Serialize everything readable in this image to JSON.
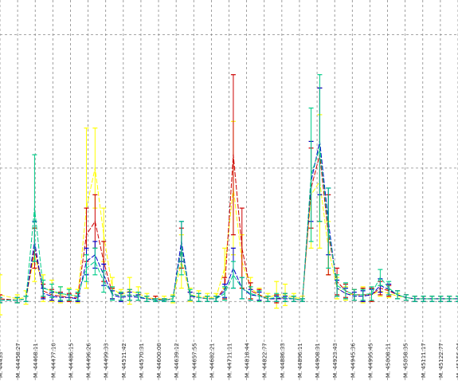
{
  "chart_data": {
    "type": "line",
    "title": "",
    "xlabel": "",
    "ylabel": "",
    "grid": true,
    "legend": "none",
    "categories": [
      "M. 44433",
      "M. 44458.27",
      "M. 44468.11",
      "M. 44477.10",
      "M. 44486.15",
      "M. 44496.26",
      "M. 44499.33",
      "M. 44511.42",
      "M. 44570.31",
      "M. 44600.00",
      "M. 44639.12",
      "M. 44657.55",
      "M. 44682.21",
      "M. 44711.11",
      "M. 44818.44",
      "M. 44822.77",
      "M. 44886.33",
      "M. 44896.11",
      "M. 44908.31",
      "M. 44923.43",
      "M. 44945.36",
      "M. 44995.45",
      "M. 45008.11",
      "M. 45058.35",
      "M. 45111.17",
      "M. 45122.77",
      "M. 45156.04"
    ],
    "x": [
      0,
      1,
      1.5,
      2,
      2.5,
      3,
      3.5,
      4,
      4.5,
      5,
      5.5,
      6,
      6.5,
      7,
      7.5,
      8,
      8.5,
      9,
      9.5,
      10,
      10.5,
      11,
      11.5,
      12,
      12.5,
      13,
      13.5,
      14,
      14.5,
      15,
      15.5,
      16,
      16.5,
      17,
      17.5,
      18,
      18.5,
      19,
      19.5,
      20,
      20.5,
      21,
      21.5,
      22,
      22.5,
      23,
      23.5,
      24,
      24.5,
      25,
      25.5,
      26,
      26.5
    ],
    "ylim": [
      -0.1,
      2.2
    ],
    "series": [
      {
        "color": "#ffff00",
        "values": [
          0.05,
          0.02,
          0.03,
          0.35,
          0.1,
          0.08,
          0.05,
          0.05,
          0.04,
          0.7,
          1.0,
          0.5,
          0.1,
          0.05,
          0.08,
          0.06,
          0.03,
          0.02,
          0.02,
          0.02,
          0.3,
          0.05,
          0.04,
          0.03,
          0.03,
          0.25,
          0.85,
          0.3,
          0.1,
          0.05,
          0.03,
          0.05,
          0.05,
          0.03,
          0.02,
          0.8,
          0.9,
          0.4,
          0.1,
          0.06,
          0.05,
          0.05,
          0.05,
          0.08,
          0.06,
          0.04,
          0.03,
          0.02,
          0.02,
          0.02,
          0.02,
          0.02,
          0.02
        ],
        "errors": [
          0.15,
          0.03,
          0.05,
          0.2,
          0.1,
          0.08,
          0.06,
          0.05,
          0.05,
          0.6,
          0.3,
          0.2,
          0.08,
          0.04,
          0.1,
          0.05,
          0.03,
          0.02,
          0.02,
          0.03,
          0.2,
          0.05,
          0.04,
          0.03,
          0.03,
          0.15,
          0.5,
          0.2,
          0.08,
          0.05,
          0.03,
          0.1,
          0.08,
          0.03,
          0.02,
          0.4,
          0.5,
          0.2,
          0.08,
          0.05,
          0.04,
          0.06,
          0.05,
          0.04,
          0.03,
          0.02,
          0.02,
          0.02,
          0.02,
          0.02,
          0.02,
          0.02,
          0.02
        ]
      },
      {
        "color": "#cc0000",
        "values": [
          0.02,
          0.01,
          0.02,
          0.4,
          0.08,
          0.05,
          0.04,
          0.03,
          0.03,
          0.5,
          0.6,
          0.3,
          0.06,
          0.04,
          0.05,
          0.04,
          0.02,
          0.02,
          0.01,
          0.02,
          0.4,
          0.04,
          0.03,
          0.02,
          0.02,
          0.1,
          1.1,
          0.4,
          0.08,
          0.05,
          0.02,
          0.02,
          0.03,
          0.02,
          0.01,
          0.85,
          1.1,
          0.5,
          0.15,
          0.08,
          0.05,
          0.05,
          0.05,
          0.1,
          0.08,
          0.05,
          0.03,
          0.02,
          0.02,
          0.02,
          0.02,
          0.02,
          0.02
        ],
        "errors": [
          0.03,
          0.02,
          0.02,
          0.15,
          0.05,
          0.04,
          0.03,
          0.03,
          0.03,
          0.2,
          0.2,
          0.15,
          0.04,
          0.03,
          0.04,
          0.03,
          0.02,
          0.02,
          0.01,
          0.02,
          0.15,
          0.03,
          0.03,
          0.02,
          0.02,
          0.08,
          0.6,
          0.3,
          0.06,
          0.04,
          0.02,
          0.03,
          0.03,
          0.02,
          0.01,
          0.3,
          0.5,
          0.3,
          0.1,
          0.05,
          0.04,
          0.05,
          0.05,
          0.05,
          0.04,
          0.03,
          0.02,
          0.02,
          0.02,
          0.02,
          0.02,
          0.02,
          0.02
        ]
      },
      {
        "color": "#0000cc",
        "values": [
          0.01,
          0.01,
          0.02,
          0.45,
          0.06,
          0.04,
          0.03,
          0.03,
          0.02,
          0.3,
          0.35,
          0.2,
          0.05,
          0.03,
          0.04,
          0.03,
          0.02,
          0.01,
          0.01,
          0.02,
          0.45,
          0.04,
          0.03,
          0.02,
          0.02,
          0.08,
          0.25,
          0.1,
          0.05,
          0.04,
          0.02,
          0.02,
          0.02,
          0.02,
          0.01,
          0.9,
          1.2,
          0.6,
          0.1,
          0.06,
          0.04,
          0.04,
          0.05,
          0.12,
          0.09,
          0.05,
          0.03,
          0.02,
          0.02,
          0.02,
          0.02,
          0.02,
          0.02
        ],
        "errors": [
          0.02,
          0.02,
          0.02,
          0.15,
          0.04,
          0.03,
          0.03,
          0.02,
          0.02,
          0.1,
          0.1,
          0.08,
          0.03,
          0.03,
          0.03,
          0.02,
          0.02,
          0.01,
          0.01,
          0.02,
          0.15,
          0.03,
          0.03,
          0.02,
          0.02,
          0.05,
          0.15,
          0.08,
          0.04,
          0.03,
          0.02,
          0.02,
          0.02,
          0.02,
          0.01,
          0.3,
          0.4,
          0.25,
          0.06,
          0.04,
          0.03,
          0.04,
          0.04,
          0.05,
          0.04,
          0.03,
          0.02,
          0.02,
          0.02,
          0.02,
          0.02,
          0.02,
          0.02
        ]
      },
      {
        "color": "#00cc88",
        "values": [
          0.01,
          0.01,
          0.02,
          0.7,
          0.1,
          0.08,
          0.06,
          0.05,
          0.04,
          0.25,
          0.3,
          0.15,
          0.06,
          0.04,
          0.05,
          0.04,
          0.02,
          0.01,
          0.01,
          0.02,
          0.4,
          0.05,
          0.03,
          0.02,
          0.02,
          0.06,
          0.2,
          0.1,
          0.06,
          0.04,
          0.02,
          0.03,
          0.03,
          0.02,
          0.01,
          0.95,
          1.15,
          0.55,
          0.12,
          0.08,
          0.05,
          0.05,
          0.06,
          0.18,
          0.1,
          0.05,
          0.03,
          0.02,
          0.02,
          0.02,
          0.02,
          0.02,
          0.02
        ],
        "errors": [
          0.02,
          0.02,
          0.02,
          0.4,
          0.06,
          0.05,
          0.05,
          0.04,
          0.03,
          0.1,
          0.1,
          0.08,
          0.05,
          0.03,
          0.04,
          0.03,
          0.02,
          0.01,
          0.01,
          0.02,
          0.2,
          0.04,
          0.03,
          0.02,
          0.02,
          0.05,
          0.1,
          0.08,
          0.05,
          0.04,
          0.02,
          0.03,
          0.03,
          0.02,
          0.01,
          0.5,
          0.55,
          0.3,
          0.08,
          0.06,
          0.04,
          0.04,
          0.05,
          0.06,
          0.05,
          0.03,
          0.02,
          0.02,
          0.02,
          0.02,
          0.02,
          0.02,
          0.02
        ]
      }
    ]
  }
}
